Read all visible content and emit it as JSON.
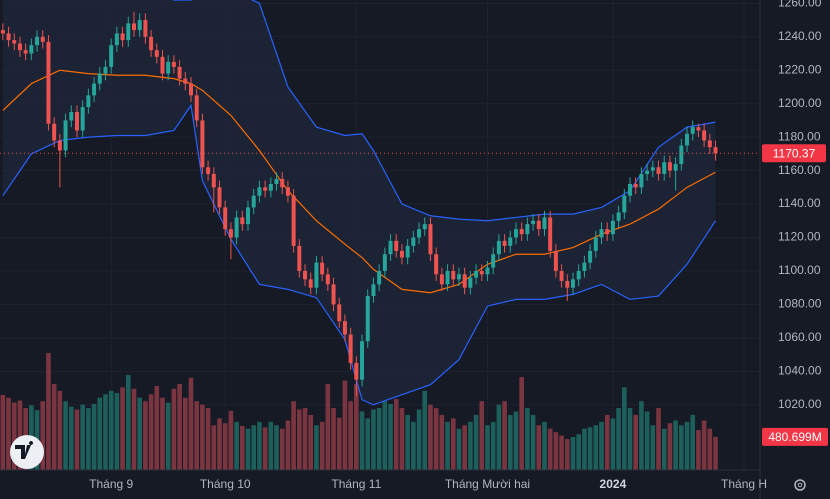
{
  "chart_data": {
    "type": "candlestick",
    "open": [
      1244,
      1242,
      1238,
      1236,
      1232,
      1230,
      1235,
      1240,
      1237,
      1188,
      1178,
      1172,
      1190,
      1195,
      1184,
      1198,
      1205,
      1212,
      1218,
      1222,
      1235,
      1242,
      1238,
      1248,
      1244,
      1250,
      1240,
      1232,
      1228,
      1218,
      1225,
      1222,
      1215,
      1212,
      1205,
      1190,
      1162,
      1158,
      1150,
      1138,
      1125,
      1120,
      1132,
      1128,
      1138,
      1145,
      1150,
      1148,
      1152,
      1155,
      1150,
      1145,
      1115,
      1100,
      1095,
      1090,
      1105,
      1098,
      1092,
      1080,
      1070,
      1062,
      1045,
      1035,
      1058,
      1085,
      1092,
      1100,
      1110,
      1118,
      1112,
      1108,
      1115,
      1120,
      1125,
      1128,
      1110,
      1098,
      1092,
      1100,
      1095,
      1098,
      1090,
      1096,
      1100,
      1098,
      1102,
      1110,
      1118,
      1115,
      1120,
      1125,
      1122,
      1128,
      1130,
      1125,
      1132,
      1112,
      1100,
      1094,
      1090,
      1095,
      1100,
      1105,
      1112,
      1120,
      1125,
      1122,
      1130,
      1135,
      1145,
      1152,
      1150,
      1158,
      1160,
      1162,
      1158,
      1165,
      1160,
      1164,
      1175,
      1182,
      1186,
      1184,
      1178,
      1174
    ],
    "high": [
      1248,
      1246,
      1242,
      1240,
      1236,
      1239,
      1244,
      1244,
      1241,
      1192,
      1182,
      1194,
      1199,
      1199,
      1202,
      1209,
      1216,
      1222,
      1226,
      1239,
      1246,
      1246,
      1252,
      1255,
      1254,
      1254,
      1244,
      1236,
      1232,
      1229,
      1229,
      1226,
      1219,
      1216,
      1209,
      1194,
      1166,
      1162,
      1154,
      1142,
      1129,
      1136,
      1136,
      1142,
      1149,
      1154,
      1154,
      1156,
      1159,
      1159,
      1154,
      1149,
      1119,
      1104,
      1099,
      1109,
      1109,
      1102,
      1096,
      1084,
      1074,
      1066,
      1049,
      1062,
      1089,
      1096,
      1104,
      1114,
      1122,
      1122,
      1116,
      1119,
      1124,
      1129,
      1132,
      1132,
      1114,
      1102,
      1104,
      1104,
      1102,
      1102,
      1100,
      1104,
      1104,
      1106,
      1114,
      1122,
      1122,
      1124,
      1129,
      1129,
      1132,
      1134,
      1134,
      1136,
      1136,
      1116,
      1104,
      1098,
      1099,
      1104,
      1109,
      1116,
      1124,
      1129,
      1129,
      1134,
      1139,
      1149,
      1156,
      1156,
      1162,
      1164,
      1166,
      1166,
      1169,
      1169,
      1168,
      1179,
      1186,
      1190,
      1188,
      1188,
      1182,
      1178
    ],
    "low": [
      1238,
      1234,
      1232,
      1228,
      1226,
      1226,
      1231,
      1233,
      1184,
      1174,
      1150,
      1168,
      1186,
      1180,
      1180,
      1194,
      1201,
      1208,
      1214,
      1218,
      1231,
      1234,
      1234,
      1240,
      1240,
      1236,
      1228,
      1224,
      1214,
      1214,
      1218,
      1211,
      1208,
      1201,
      1186,
      1158,
      1154,
      1135,
      1134,
      1121,
      1107,
      1116,
      1124,
      1124,
      1134,
      1141,
      1144,
      1144,
      1148,
      1146,
      1141,
      1111,
      1096,
      1091,
      1086,
      1086,
      1094,
      1088,
      1076,
      1066,
      1058,
      1041,
      1025,
      1031,
      1054,
      1081,
      1088,
      1096,
      1106,
      1108,
      1104,
      1104,
      1111,
      1116,
      1121,
      1106,
      1094,
      1088,
      1088,
      1091,
      1091,
      1086,
      1086,
      1092,
      1094,
      1094,
      1098,
      1106,
      1111,
      1111,
      1116,
      1118,
      1118,
      1124,
      1121,
      1121,
      1108,
      1096,
      1090,
      1082,
      1086,
      1091,
      1096,
      1101,
      1108,
      1116,
      1118,
      1118,
      1126,
      1131,
      1141,
      1146,
      1146,
      1154,
      1156,
      1154,
      1154,
      1156,
      1148,
      1160,
      1171,
      1178,
      1180,
      1174,
      1170,
      1166
    ],
    "close": [
      1242,
      1238,
      1236,
      1232,
      1230,
      1235,
      1240,
      1237,
      1188,
      1178,
      1172,
      1190,
      1195,
      1184,
      1198,
      1205,
      1212,
      1218,
      1222,
      1235,
      1242,
      1238,
      1248,
      1244,
      1250,
      1240,
      1232,
      1228,
      1218,
      1225,
      1222,
      1215,
      1212,
      1205,
      1190,
      1162,
      1158,
      1150,
      1138,
      1125,
      1120,
      1132,
      1128,
      1138,
      1145,
      1150,
      1148,
      1152,
      1155,
      1150,
      1145,
      1115,
      1100,
      1095,
      1090,
      1105,
      1098,
      1092,
      1080,
      1070,
      1062,
      1045,
      1035,
      1058,
      1085,
      1092,
      1100,
      1110,
      1118,
      1112,
      1108,
      1115,
      1120,
      1125,
      1128,
      1110,
      1098,
      1092,
      1100,
      1095,
      1098,
      1090,
      1096,
      1100,
      1098,
      1102,
      1110,
      1118,
      1115,
      1120,
      1125,
      1122,
      1128,
      1130,
      1125,
      1132,
      1112,
      1100,
      1094,
      1090,
      1095,
      1100,
      1105,
      1112,
      1120,
      1125,
      1122,
      1130,
      1135,
      1145,
      1152,
      1150,
      1158,
      1160,
      1162,
      1158,
      1165,
      1160,
      1164,
      1175,
      1182,
      1186,
      1184,
      1178,
      1174,
      1170.37
    ],
    "volume": [
      1090,
      1050,
      980,
      1010,
      900,
      940,
      870,
      1000,
      1700,
      1250,
      1150,
      1000,
      920,
      880,
      950,
      900,
      960,
      1050,
      1100,
      1150,
      1120,
      1200,
      1380,
      1180,
      1050,
      1000,
      1100,
      1220,
      1050,
      980,
      1180,
      1250,
      1050,
      1340,
      1000,
      950,
      900,
      650,
      750,
      680,
      860,
      700,
      640,
      600,
      650,
      700,
      620,
      700,
      650,
      600,
      720,
      1000,
      880,
      900,
      800,
      650,
      700,
      1250,
      900,
      760,
      1300,
      1000,
      1250,
      850,
      750,
      880,
      900,
      1000,
      960,
      1030,
      900,
      800,
      700,
      880,
      1150,
      950,
      900,
      800,
      700,
      750,
      600,
      650,
      700,
      800,
      1000,
      650,
      700,
      950,
      1000,
      800,
      850,
      1350,
      900,
      800,
      650,
      700,
      600,
      550,
      500,
      450,
      480,
      520,
      600,
      620,
      650,
      700,
      800,
      750,
      900,
      1200,
      900,
      800,
      1000,
      850,
      650,
      900,
      600,
      680,
      720,
      650,
      700,
      800,
      580,
      720,
      600,
      480.699
    ],
    "volume_last_label": "480.699M",
    "up_color": "#26a69a",
    "down_color": "#ef5350",
    "volume_up_color": "#1d5f5a",
    "volume_down_color": "#7a3540",
    "bollinger": {
      "x": [
        0,
        5,
        10,
        15,
        20,
        25,
        30,
        33,
        35,
        40,
        45,
        50,
        55,
        60,
        63,
        65,
        70,
        75,
        80,
        85,
        90,
        95,
        100,
        105,
        110,
        115,
        120,
        125
      ],
      "upper": [
        1290,
        1286,
        1282,
        1278,
        1274,
        1270,
        1262,
        1262,
        1266,
        1268,
        1260,
        1210,
        1186,
        1181,
        1182,
        1172,
        1140,
        1133,
        1131,
        1130,
        1132,
        1134,
        1134,
        1138,
        1148,
        1174,
        1186,
        1189
      ],
      "middle": [
        1196,
        1212,
        1220,
        1218,
        1217,
        1217,
        1215,
        1212,
        1208,
        1193,
        1172,
        1148,
        1130,
        1116,
        1108,
        1101,
        1089,
        1087,
        1092,
        1104,
        1110,
        1110,
        1114,
        1122,
        1128,
        1137,
        1150,
        1159
      ],
      "lower": [
        1145,
        1170,
        1178,
        1180,
        1181,
        1181,
        1184,
        1199,
        1154,
        1119,
        1092,
        1089,
        1084,
        1059,
        1023,
        1020,
        1026,
        1032,
        1047,
        1079,
        1083,
        1083,
        1086,
        1092,
        1083,
        1085,
        1104,
        1130
      ],
      "band_color": "#2962ff",
      "middle_color": "#ff6d00",
      "fill": "#1c2536"
    },
    "xlim": [
      -0.5,
      132.8
    ],
    "xticks": [
      {
        "value": 19,
        "label": "Tháng 9"
      },
      {
        "value": 39,
        "label": "Tháng 10"
      },
      {
        "value": 62,
        "label": "Tháng 11"
      },
      {
        "value": 85,
        "label": "Tháng Mười hai"
      },
      {
        "value": 107,
        "label": "2024"
      },
      {
        "value": 130,
        "label": "Tháng H"
      }
    ],
    "ylim": [
      981,
      1262
    ],
    "yticks": [
      {
        "value": 1020,
        "label": "1020.00"
      },
      {
        "value": 1040,
        "label": "1040.00"
      },
      {
        "value": 1060,
        "label": "1060.00"
      },
      {
        "value": 1080,
        "label": "1080.00"
      },
      {
        "value": 1100,
        "label": "1100.00"
      },
      {
        "value": 1120,
        "label": "1120.00"
      },
      {
        "value": 1140,
        "label": "1140.00"
      },
      {
        "value": 1160,
        "label": "1160.00"
      },
      {
        "value": 1180,
        "label": "1180.00"
      },
      {
        "value": 1200,
        "label": "1200.00"
      },
      {
        "value": 1220,
        "label": "1220.00"
      },
      {
        "value": 1240,
        "label": "1240.00"
      },
      {
        "value": 1260,
        "label": "1260.00"
      }
    ],
    "volume_lim": [
      0,
      1700
    ],
    "grid": true
  }
}
